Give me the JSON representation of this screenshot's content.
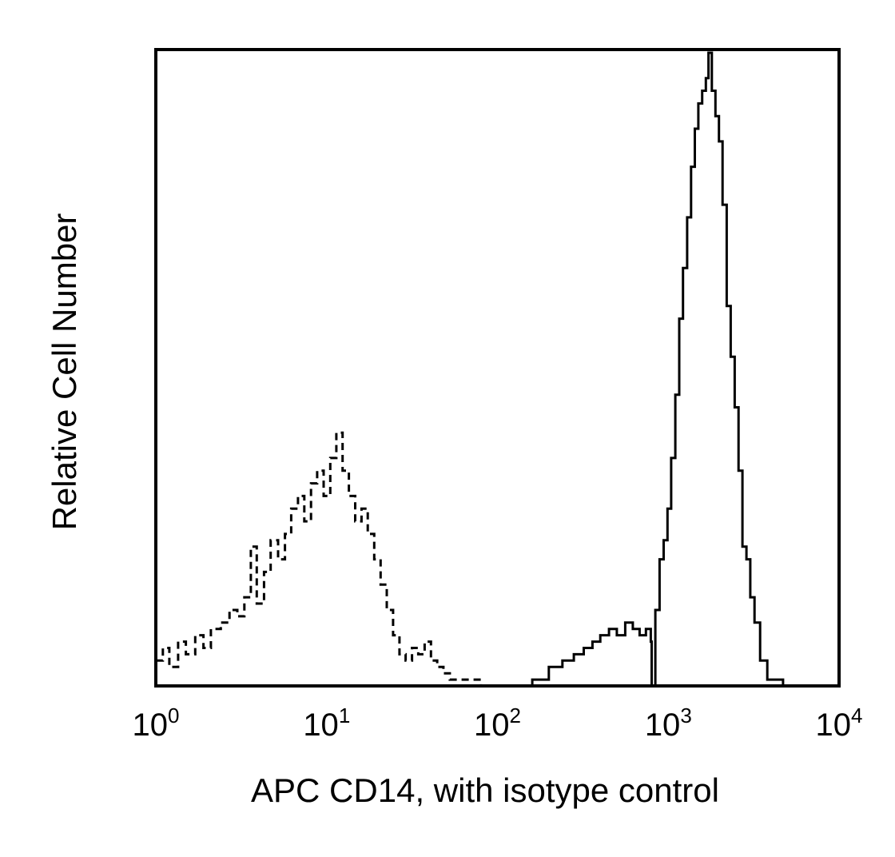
{
  "chart_data": {
    "type": "line",
    "title": "",
    "xlabel": "APC CD14, with isotype control",
    "ylabel": "Relative Cell Number",
    "xscale": "log",
    "xlim": [
      1,
      10000
    ],
    "ylim": [
      0,
      100
    ],
    "xticks": [
      {
        "value": 1,
        "base": "10",
        "exp": "0"
      },
      {
        "value": 10,
        "base": "10",
        "exp": "1"
      },
      {
        "value": 100,
        "base": "10",
        "exp": "2"
      },
      {
        "value": 1000,
        "base": "10",
        "exp": "3"
      },
      {
        "value": 10000,
        "base": "10",
        "exp": "4"
      }
    ],
    "grid": false,
    "legend": "none",
    "series": [
      {
        "style": "dashed",
        "color": "#000000",
        "x": [
          1.0,
          1.1,
          1.2,
          1.35,
          1.5,
          1.7,
          1.9,
          2.1,
          2.4,
          2.7,
          3.0,
          3.3,
          3.6,
          3.9,
          4.3,
          4.7,
          5.2,
          5.7,
          6.2,
          6.8,
          7.4,
          8.1,
          8.8,
          9.6,
          10.5,
          11.4,
          12.4,
          13.5,
          14.7,
          16.0,
          17.4,
          19.0,
          20.7,
          22.5,
          24.5,
          26.7,
          29.0,
          31.6,
          34.4,
          37.5,
          40.8,
          44.4,
          48.3,
          52.6,
          57.3,
          62.4,
          68,
          80,
          100,
          130,
          170,
          220
        ],
        "y": [
          4,
          6,
          3,
          7,
          5,
          8,
          6,
          9,
          10,
          12,
          11,
          14,
          22,
          13,
          18,
          23,
          20,
          24,
          28,
          30,
          26,
          32,
          34,
          30,
          36,
          40,
          34,
          30,
          26,
          28,
          24,
          20,
          16,
          12,
          8,
          5,
          4,
          6,
          5,
          7,
          4,
          3,
          2,
          1,
          1,
          1,
          1,
          0,
          0,
          0,
          0,
          0
        ]
      },
      {
        "style": "solid",
        "color": "#000000",
        "x": [
          30,
          45,
          70,
          110,
          160,
          200,
          240,
          280,
          320,
          360,
          400,
          450,
          500,
          560,
          620,
          680,
          740,
          790,
          800,
          840,
          890,
          940,
          990,
          1040,
          1100,
          1160,
          1220,
          1290,
          1360,
          1430,
          1500,
          1580,
          1660,
          1720,
          1800,
          1890,
          1980,
          2080,
          2200,
          2320,
          2450,
          2580,
          2720,
          2870,
          3020,
          3200,
          3450,
          3800,
          4200,
          4700
        ],
        "y": [
          0,
          0,
          0,
          0,
          1,
          3,
          4,
          5,
          6,
          7,
          8,
          9,
          8,
          10,
          9,
          8,
          9,
          7,
          0,
          12,
          20,
          23,
          28,
          36,
          46,
          58,
          66,
          74,
          82,
          88,
          92,
          94,
          96,
          100,
          94,
          90,
          86,
          76,
          60,
          52,
          44,
          34,
          22,
          20,
          14,
          10,
          4,
          1,
          1,
          0
        ]
      }
    ]
  }
}
